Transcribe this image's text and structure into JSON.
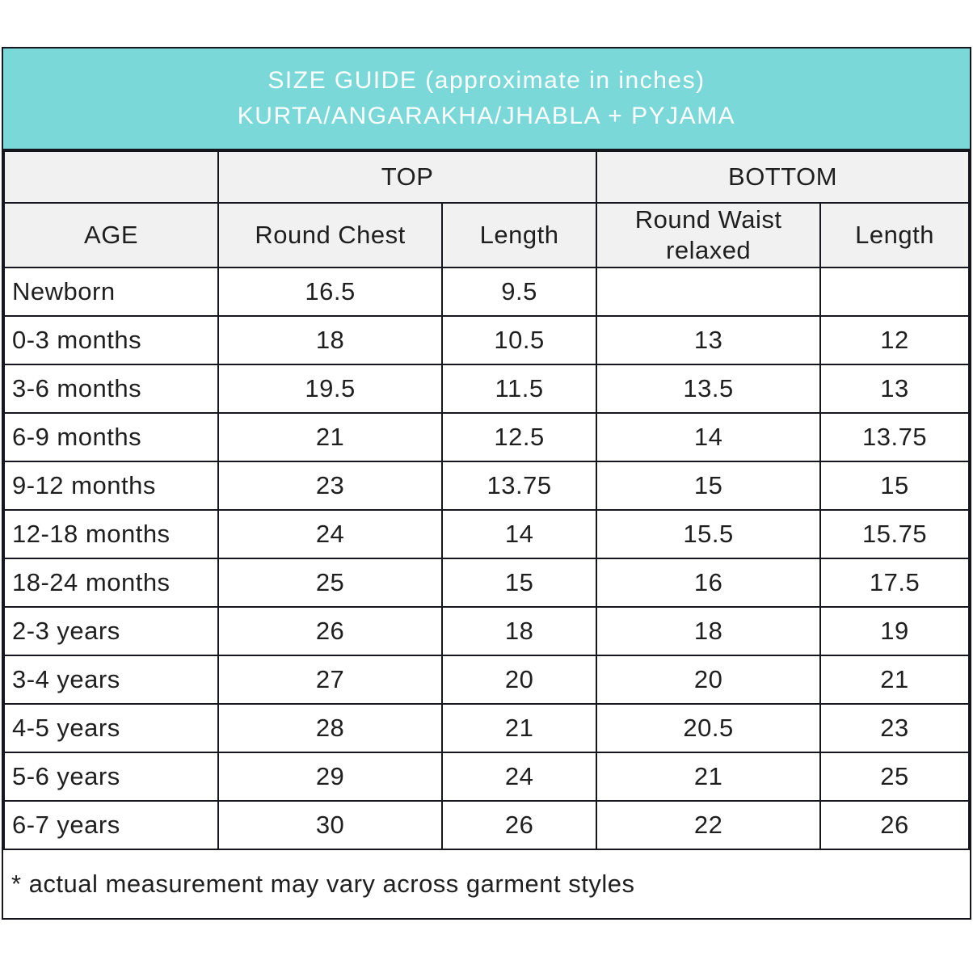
{
  "title": {
    "line1": "SIZE GUIDE (approximate in inches)",
    "line2": "KURTA/ANGARAKHA/JHABLA + PYJAMA"
  },
  "colors": {
    "banner_teal": "#7bd8d9",
    "header_bg": "#f1f1f1",
    "border": "#16161e",
    "text": "#1f1f1f",
    "banner_text": "#ffffff"
  },
  "table": {
    "group_headers": {
      "age": "",
      "top": "TOP",
      "bottom": "BOTTOM"
    },
    "column_headers": [
      "AGE",
      "Round Chest",
      "Length",
      "Round Waist relaxed",
      "Length"
    ],
    "rows": [
      [
        "Newborn",
        "16.5",
        "9.5",
        "",
        ""
      ],
      [
        "0-3 months",
        "18",
        "10.5",
        "13",
        "12"
      ],
      [
        "3-6 months",
        "19.5",
        "11.5",
        "13.5",
        "13"
      ],
      [
        "6-9 months",
        "21",
        "12.5",
        "14",
        "13.75"
      ],
      [
        "9-12 months",
        "23",
        "13.75",
        "15",
        "15"
      ],
      [
        "12-18 months",
        "24",
        "14",
        "15.5",
        "15.75"
      ],
      [
        "18-24 months",
        "25",
        "15",
        "16",
        "17.5"
      ],
      [
        "2-3 years",
        "26",
        "18",
        "18",
        "19"
      ],
      [
        "3-4 years",
        "27",
        "20",
        "20",
        "21"
      ],
      [
        "4-5 years",
        "28",
        "21",
        "20.5",
        "23"
      ],
      [
        "5-6 years",
        "29",
        "24",
        "21",
        "25"
      ],
      [
        "6-7 years",
        "30",
        "26",
        "22",
        "26"
      ]
    ],
    "footnote": "* actual measurement may vary across garment styles"
  }
}
